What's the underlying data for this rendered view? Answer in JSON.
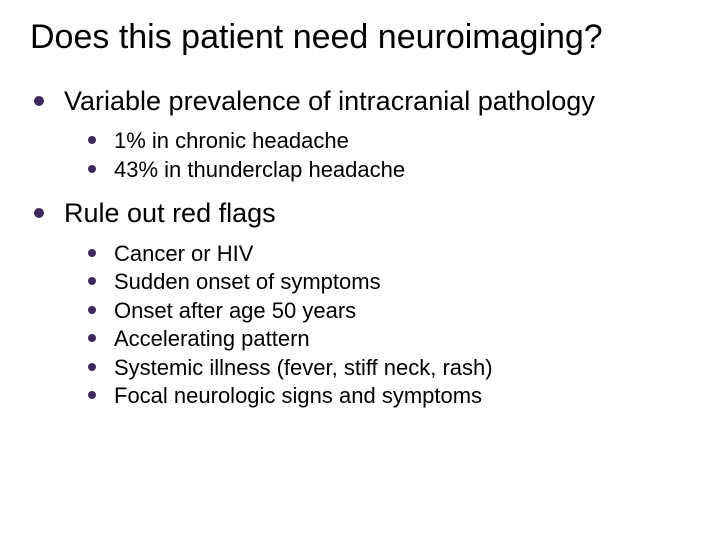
{
  "title": "Does this patient need neuroimaging?",
  "colors": {
    "bullet": "#3e2a5a",
    "text": "#000000",
    "background": "#ffffff"
  },
  "typography": {
    "title_fontsize": 34,
    "level1_fontsize": 27,
    "level2_fontsize": 22,
    "font_family": "Arial"
  },
  "sections": [
    {
      "heading": "Variable prevalence of intracranial pathology",
      "items": [
        "1% in chronic headache",
        "43% in thunderclap headache"
      ]
    },
    {
      "heading": "Rule out red flags",
      "items": [
        "Cancer or HIV",
        "Sudden onset of symptoms",
        "Onset after age 50 years",
        "Accelerating pattern",
        "Systemic illness (fever, stiff neck, rash)",
        "Focal neurologic signs and symptoms"
      ]
    }
  ]
}
